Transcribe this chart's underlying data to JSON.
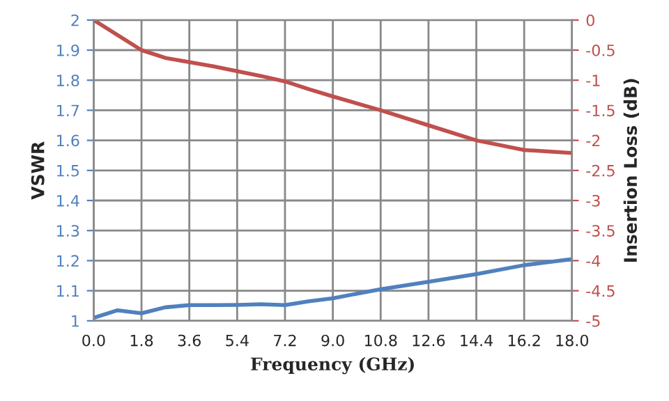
{
  "chart_data": {
    "type": "line",
    "xlabel": "Frequency (GHz)",
    "ylabel": "VSWR",
    "y2label": "Insertion Loss (dB)",
    "xlim": [
      0,
      18
    ],
    "xticks": [
      {
        "value": 0,
        "label": "0.0"
      },
      1.8,
      3.6,
      5.4,
      7.2,
      {
        "value": 9,
        "label": "9.0"
      },
      10.8,
      12.6,
      14.4,
      16.2,
      {
        "value": 18,
        "label": "18.0"
      }
    ],
    "ylim": [
      1,
      2
    ],
    "yticks": [
      1,
      1.1,
      1.2,
      1.3,
      1.4,
      1.5,
      1.6,
      1.7,
      1.8,
      1.9,
      2
    ],
    "y2lim": [
      -5,
      0
    ],
    "y2ticks": [
      -5,
      -4.5,
      -4,
      -3.5,
      -3,
      -2.5,
      -2,
      -1.5,
      -1,
      -0.5,
      0
    ],
    "grid": true,
    "marker": "none",
    "line_style": "solid",
    "series": [
      {
        "color": "#4f81bd",
        "x": [
          0,
          0.9,
          1.8,
          2.7,
          3.6,
          4.5,
          5.4,
          6.3,
          7.2,
          8.1,
          9.0,
          10.8,
          12.6,
          14.4,
          16.2,
          18
        ],
        "values": [
          1.01,
          1.035,
          1.025,
          1.045,
          1.052,
          1.052,
          1.053,
          1.055,
          1.052,
          1.065,
          1.075,
          1.105,
          1.13,
          1.155,
          1.185,
          1.205
        ]
      },
      {
        "color": "#c0504d",
        "axis": "y2",
        "x": [
          0,
          0.9,
          1.8,
          2.7,
          3.6,
          4.5,
          5.4,
          6.3,
          7.2,
          8.1,
          9.0,
          10.8,
          12.6,
          14.4,
          16.2,
          18
        ],
        "values": [
          0,
          -0.25,
          -0.5,
          -0.63,
          -0.7,
          -0.77,
          -0.85,
          -0.93,
          -1.02,
          -1.15,
          -1.27,
          -1.5,
          -1.75,
          -2.0,
          -2.16,
          -2.21
        ]
      }
    ]
  }
}
